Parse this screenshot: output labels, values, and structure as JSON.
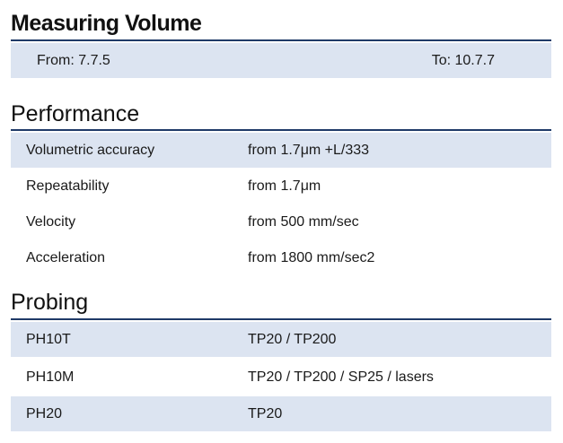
{
  "measuring_volume": {
    "title": "Measuring Volume",
    "from": "From: 7.7.5",
    "to": "To: 10.7.7"
  },
  "performance": {
    "title": "Performance",
    "rows": [
      {
        "label": "Volumetric accuracy",
        "value": "from 1.7μm +L/333"
      },
      {
        "label": "Repeatability",
        "value": "from 1.7μm"
      },
      {
        "label": "Velocity",
        "value": "from 500 mm/sec"
      },
      {
        "label": "Acceleration",
        "value": "from 1800 mm/sec2"
      }
    ]
  },
  "probing": {
    "title": "Probing",
    "rows": [
      {
        "label": "PH10T",
        "value": "TP20 / TP200"
      },
      {
        "label": "PH10M",
        "value": "TP20 / TP200 / SP25 / lasers"
      },
      {
        "label": "PH20",
        "value": "TP20"
      }
    ]
  },
  "colors": {
    "row_shade": "#dce4f1",
    "rule": "#1f3a68"
  }
}
